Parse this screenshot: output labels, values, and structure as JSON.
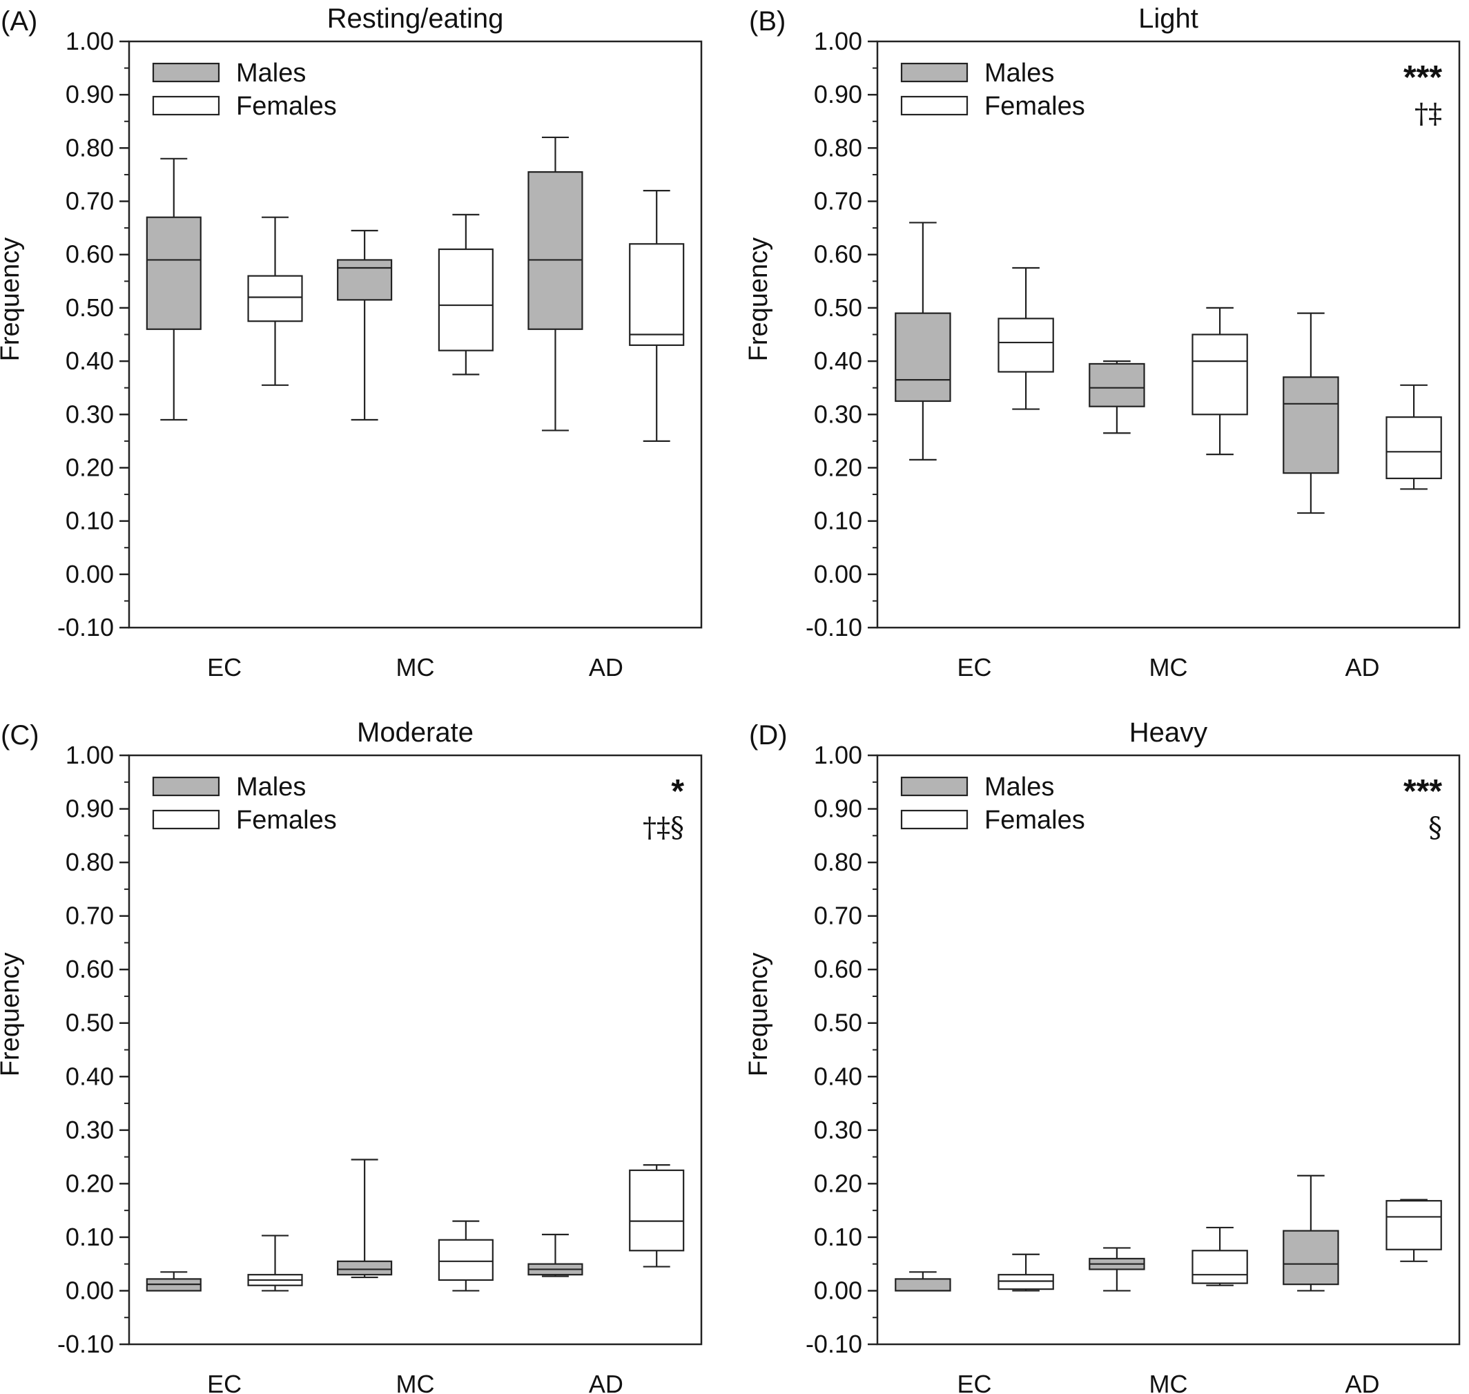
{
  "chart_data": [
    {
      "type": "box",
      "panel_label": "(A)",
      "title": "Resting/eating",
      "ylabel": "Frequency",
      "ylim": [
        -0.1,
        1.0
      ],
      "yticks": [
        "-0.10",
        "0.00",
        "0.10",
        "0.20",
        "0.30",
        "0.40",
        "0.50",
        "0.60",
        "0.70",
        "0.80",
        "0.90",
        "1.00"
      ],
      "categories": [
        "EC",
        "MC",
        "AD"
      ],
      "legend": [
        "Males",
        "Females"
      ],
      "legend_position": "top-left",
      "significance": "",
      "significance_sub": "",
      "series": [
        {
          "name": "Males",
          "boxes": [
            {
              "min": 0.29,
              "q1": 0.46,
              "median": 0.59,
              "q3": 0.67,
              "max": 0.78
            },
            {
              "min": 0.29,
              "q1": 0.515,
              "median": 0.575,
              "q3": 0.59,
              "max": 0.645
            },
            {
              "min": 0.27,
              "q1": 0.46,
              "median": 0.59,
              "q3": 0.755,
              "max": 0.82
            }
          ]
        },
        {
          "name": "Females",
          "boxes": [
            {
              "min": 0.355,
              "q1": 0.475,
              "median": 0.52,
              "q3": 0.56,
              "max": 0.67
            },
            {
              "min": 0.375,
              "q1": 0.42,
              "median": 0.505,
              "q3": 0.61,
              "max": 0.675
            },
            {
              "min": 0.25,
              "q1": 0.43,
              "median": 0.45,
              "q3": 0.62,
              "max": 0.72
            }
          ]
        }
      ]
    },
    {
      "type": "box",
      "panel_label": "(B)",
      "title": "Light",
      "ylabel": "Frequency",
      "ylim": [
        -0.1,
        1.0
      ],
      "yticks": [
        "-0.10",
        "0.00",
        "0.10",
        "0.20",
        "0.30",
        "0.40",
        "0.50",
        "0.60",
        "0.70",
        "0.80",
        "0.90",
        "1.00"
      ],
      "categories": [
        "EC",
        "MC",
        "AD"
      ],
      "legend": [
        "Males",
        "Females"
      ],
      "legend_position": "top-left",
      "significance": "***",
      "significance_sub": "†‡",
      "series": [
        {
          "name": "Males",
          "boxes": [
            {
              "min": 0.215,
              "q1": 0.325,
              "median": 0.365,
              "q3": 0.49,
              "max": 0.66
            },
            {
              "min": 0.265,
              "q1": 0.315,
              "median": 0.35,
              "q3": 0.395,
              "max": 0.4
            },
            {
              "min": 0.115,
              "q1": 0.19,
              "median": 0.32,
              "q3": 0.37,
              "max": 0.49
            }
          ]
        },
        {
          "name": "Females",
          "boxes": [
            {
              "min": 0.31,
              "q1": 0.38,
              "median": 0.435,
              "q3": 0.48,
              "max": 0.575
            },
            {
              "min": 0.225,
              "q1": 0.3,
              "median": 0.4,
              "q3": 0.45,
              "max": 0.5
            },
            {
              "min": 0.16,
              "q1": 0.18,
              "median": 0.23,
              "q3": 0.295,
              "max": 0.355
            }
          ]
        }
      ]
    },
    {
      "type": "box",
      "panel_label": "(C)",
      "title": "Moderate",
      "ylabel": "Frequency",
      "ylim": [
        -0.1,
        1.0
      ],
      "yticks": [
        "-0.10",
        "0.00",
        "0.10",
        "0.20",
        "0.30",
        "0.40",
        "0.50",
        "0.60",
        "0.70",
        "0.80",
        "0.90",
        "1.00"
      ],
      "categories": [
        "EC",
        "MC",
        "AD"
      ],
      "legend": [
        "Males",
        "Females"
      ],
      "legend_position": "top-left",
      "significance": "*",
      "significance_sub": "†‡§",
      "series": [
        {
          "name": "Males",
          "boxes": [
            {
              "min": 0.0,
              "q1": 0.0,
              "median": 0.012,
              "q3": 0.022,
              "max": 0.035
            },
            {
              "min": 0.025,
              "q1": 0.03,
              "median": 0.04,
              "q3": 0.055,
              "max": 0.245
            },
            {
              "min": 0.027,
              "q1": 0.03,
              "median": 0.04,
              "q3": 0.05,
              "max": 0.105
            }
          ]
        },
        {
          "name": "Females",
          "boxes": [
            {
              "min": 0.0,
              "q1": 0.01,
              "median": 0.02,
              "q3": 0.03,
              "max": 0.103
            },
            {
              "min": 0.0,
              "q1": 0.02,
              "median": 0.055,
              "q3": 0.095,
              "max": 0.13
            },
            {
              "min": 0.045,
              "q1": 0.075,
              "median": 0.13,
              "q3": 0.225,
              "max": 0.235
            }
          ]
        }
      ]
    },
    {
      "type": "box",
      "panel_label": "(D)",
      "title": "Heavy",
      "ylabel": "Frequency",
      "ylim": [
        -0.1,
        1.0
      ],
      "yticks": [
        "-0.10",
        "0.00",
        "0.10",
        "0.20",
        "0.30",
        "0.40",
        "0.50",
        "0.60",
        "0.70",
        "0.80",
        "0.90",
        "1.00"
      ],
      "categories": [
        "EC",
        "MC",
        "AD"
      ],
      "legend": [
        "Males",
        "Females"
      ],
      "legend_position": "top-left",
      "significance": "***",
      "significance_sub": "§",
      "series": [
        {
          "name": "Males",
          "boxes": [
            {
              "min": 0.0,
              "q1": 0.0,
              "median": 0.0,
              "q3": 0.022,
              "max": 0.035
            },
            {
              "min": 0.0,
              "q1": 0.04,
              "median": 0.05,
              "q3": 0.06,
              "max": 0.08
            },
            {
              "min": 0.0,
              "q1": 0.012,
              "median": 0.05,
              "q3": 0.112,
              "max": 0.215
            }
          ]
        },
        {
          "name": "Females",
          "boxes": [
            {
              "min": 0.0,
              "q1": 0.003,
              "median": 0.018,
              "q3": 0.03,
              "max": 0.068
            },
            {
              "min": 0.01,
              "q1": 0.014,
              "median": 0.03,
              "q3": 0.075,
              "max": 0.118
            },
            {
              "min": 0.055,
              "q1": 0.077,
              "median": 0.138,
              "q3": 0.168,
              "max": 0.17
            }
          ]
        }
      ]
    }
  ],
  "colors": {
    "males_fill": "#b4b4b4",
    "females_fill": "#ffffff",
    "stroke": "#222222"
  }
}
